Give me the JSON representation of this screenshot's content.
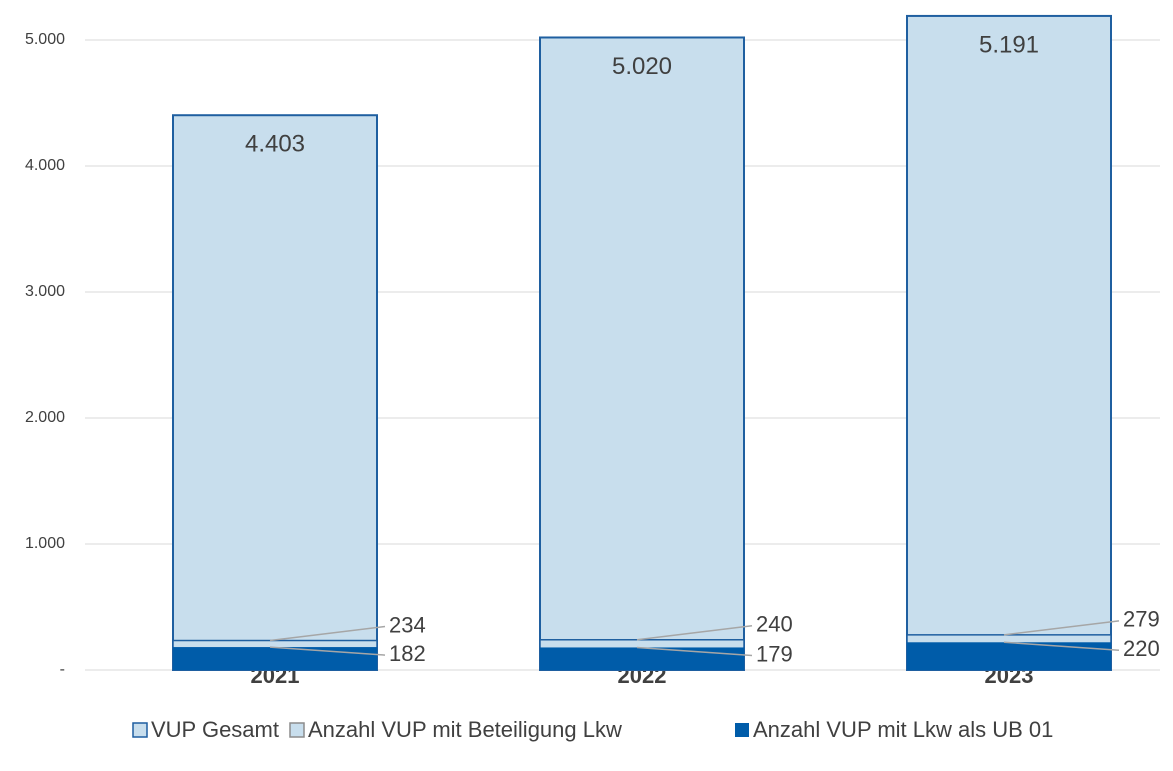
{
  "chart_data": {
    "type": "bar",
    "categories": [
      "2021",
      "2022",
      "2023"
    ],
    "series": [
      {
        "name": "VUP Gesamt",
        "color": "#c8deed",
        "values": [
          4403,
          5020,
          5191
        ],
        "value_labels": [
          "4.403",
          "5.020",
          "5.191"
        ]
      },
      {
        "name": "Anzahl VUP mit Beteiligung Lkw",
        "color": "#c8deed",
        "values": [
          234,
          240,
          279
        ]
      },
      {
        "name": "Anzahl VUP mit Lkw als UB 01",
        "color": "#005ca9",
        "values": [
          182,
          179,
          220
        ]
      }
    ],
    "ylim": [
      0,
      5200
    ],
    "yticks": [
      {
        "value": 0,
        "label": "-"
      },
      {
        "value": 1000,
        "label": "1.000"
      },
      {
        "value": 2000,
        "label": "2.000"
      },
      {
        "value": 3000,
        "label": "3.000"
      },
      {
        "value": 4000,
        "label": "4.000"
      },
      {
        "value": 5000,
        "label": "5.000"
      }
    ],
    "grid": true
  }
}
